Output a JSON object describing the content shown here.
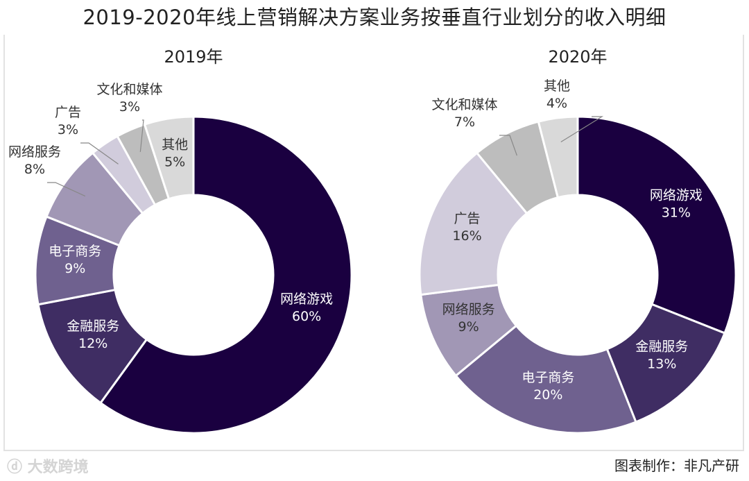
{
  "chart_data": [
    {
      "type": "pie",
      "style": "donut",
      "title": "2019年",
      "categories": [
        "网络游戏",
        "金融服务",
        "电子商务",
        "网络服务",
        "广告",
        "文化和媒体",
        "其他"
      ],
      "values": [
        60,
        12,
        9,
        8,
        3,
        3,
        5
      ],
      "labels": [
        "60%",
        "12%",
        "9%",
        "8%",
        "3%",
        "3%",
        "5%"
      ]
    },
    {
      "type": "pie",
      "style": "donut",
      "title": "2020年",
      "categories": [
        "网络游戏",
        "金融服务",
        "电子商务",
        "网络服务",
        "广告",
        "文化和媒体",
        "其他"
      ],
      "values": [
        31,
        13,
        20,
        9,
        16,
        7,
        4
      ],
      "labels": [
        "31%",
        "13%",
        "20%",
        "9%",
        "16%",
        "7%",
        "4%"
      ]
    }
  ],
  "title": "2019-2020年线上营销解决方案业务按垂直行业划分的收入明细",
  "footer": "图表制作：非凡产研",
  "watermark": "大数跨境",
  "colors": [
    "#1a0040",
    "#3f2d63",
    "#6f618f",
    "#a197b5",
    "#d1ccdc",
    "#bdbdbd",
    "#d9d9d9"
  ]
}
